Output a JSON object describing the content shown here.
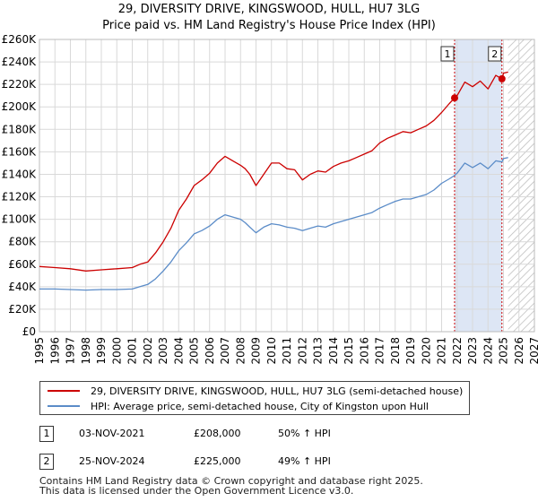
{
  "header": {
    "title_line1": "29, DIVERSITY DRIVE, KINGSWOOD, HULL, HU7 3LG",
    "title_line2": "Price paid vs. HM Land Registry's House Price Index (HPI)"
  },
  "legend": {
    "property_label": "29, DIVERSITY DRIVE, KINGSWOOD, HULL, HU7 3LG (semi-detached house)",
    "hpi_label": "HPI: Average price, semi-detached house, City of Kingston upon Hull"
  },
  "sales": [
    {
      "num": "1",
      "date": "03-NOV-2021",
      "price": "£208,000",
      "hpi": "50% ↑ HPI"
    },
    {
      "num": "2",
      "date": "25-NOV-2024",
      "price": "£225,000",
      "hpi": "49% ↑ HPI"
    }
  ],
  "footer": {
    "line1": "Contains HM Land Registry data © Crown copyright and database right 2025.",
    "line2": "This data is licensed under the Open Government Licence v3.0."
  },
  "colors": {
    "property": "#cc0000",
    "hpi": "#5b8cc8",
    "grid": "#d9d9d9",
    "shade": "#dde6f5"
  },
  "chart_data": {
    "type": "line",
    "xlim": [
      1995,
      2027
    ],
    "ylim": [
      0,
      260000
    ],
    "x_ticks": [
      1995,
      1996,
      1997,
      1998,
      1999,
      2000,
      2001,
      2002,
      2003,
      2004,
      2005,
      2006,
      2007,
      2008,
      2009,
      2010,
      2011,
      2012,
      2013,
      2014,
      2015,
      2016,
      2017,
      2018,
      2019,
      2020,
      2021,
      2022,
      2023,
      2024,
      2025,
      2026,
      2027
    ],
    "y_ticks": [
      0,
      20000,
      40000,
      60000,
      80000,
      100000,
      120000,
      140000,
      160000,
      180000,
      200000,
      220000,
      240000,
      260000
    ],
    "y_tick_labels": [
      "£0",
      "£20K",
      "£40K",
      "£60K",
      "£80K",
      "£100K",
      "£120K",
      "£140K",
      "£160K",
      "£180K",
      "£200K",
      "£220K",
      "£240K",
      "£260K"
    ],
    "shaded_span": [
      2021.84,
      2024.9
    ],
    "hatch_from": 2025.3,
    "markers": [
      {
        "label": "1",
        "x": 2021.84,
        "y": 208000
      },
      {
        "label": "2",
        "x": 2024.9,
        "y": 225000
      }
    ],
    "series": [
      {
        "name": "29, DIVERSITY DRIVE, KINGSWOOD, HULL, HU7 3LG (semi-detached house)",
        "x": [
          1995,
          1996,
          1997,
          1998,
          1999,
          2000,
          2001,
          2001.5,
          2002,
          2002.5,
          2003,
          2003.5,
          2004,
          2004.5,
          2005,
          2005.5,
          2006,
          2006.5,
          2007,
          2007.5,
          2008,
          2008.3,
          2008.6,
          2009,
          2009.5,
          2010,
          2010.5,
          2011,
          2011.5,
          2012,
          2012.5,
          2013,
          2013.5,
          2014,
          2014.5,
          2015,
          2015.5,
          2016,
          2016.5,
          2017,
          2017.5,
          2018,
          2018.5,
          2019,
          2019.5,
          2020,
          2020.5,
          2021,
          2021.5,
          2021.84,
          2022,
          2022.5,
          2023,
          2023.5,
          2024,
          2024.5,
          2024.9,
          2025,
          2025.3
        ],
        "values": [
          58000,
          57000,
          56000,
          54000,
          55000,
          56000,
          57000,
          60000,
          62000,
          70000,
          80000,
          92000,
          108000,
          118000,
          130000,
          135000,
          141000,
          150000,
          156000,
          152000,
          148000,
          145000,
          140000,
          130000,
          140000,
          150000,
          150000,
          145000,
          144000,
          135000,
          140000,
          143000,
          142000,
          147000,
          150000,
          152000,
          155000,
          158000,
          161000,
          168000,
          172000,
          175000,
          178000,
          177000,
          180000,
          183000,
          188000,
          195000,
          203000,
          208000,
          210000,
          222000,
          218000,
          223000,
          216000,
          228000,
          225000,
          230000,
          231000
        ]
      },
      {
        "name": "HPI: Average price, semi-detached house, City of Kingston upon Hull",
        "x": [
          1995,
          1996,
          1997,
          1998,
          1999,
          2000,
          2001,
          2001.5,
          2002,
          2002.5,
          2003,
          2003.5,
          2004,
          2004.5,
          2005,
          2005.5,
          2006,
          2006.5,
          2007,
          2007.5,
          2008,
          2008.3,
          2008.6,
          2009,
          2009.5,
          2010,
          2010.5,
          2011,
          2011.5,
          2012,
          2012.5,
          2013,
          2013.5,
          2014,
          2014.5,
          2015,
          2015.5,
          2016,
          2016.5,
          2017,
          2017.5,
          2018,
          2018.5,
          2019,
          2019.5,
          2020,
          2020.5,
          2021,
          2021.5,
          2021.84,
          2022,
          2022.5,
          2023,
          2023.5,
          2024,
          2024.5,
          2024.9,
          2025,
          2025.3
        ],
        "values": [
          38000,
          38000,
          37500,
          37000,
          37500,
          37500,
          38000,
          40000,
          42000,
          47000,
          54000,
          62000,
          72000,
          79000,
          87000,
          90000,
          94000,
          100000,
          104000,
          102000,
          100000,
          97000,
          93000,
          88000,
          93000,
          96000,
          95000,
          93000,
          92000,
          90000,
          92000,
          94000,
          93000,
          96000,
          98000,
          100000,
          102000,
          104000,
          106000,
          110000,
          113000,
          116000,
          118000,
          118000,
          120000,
          122000,
          126000,
          132000,
          136000,
          139000,
          141000,
          150000,
          146000,
          150000,
          145000,
          152000,
          151000,
          154000,
          155000
        ]
      }
    ]
  }
}
